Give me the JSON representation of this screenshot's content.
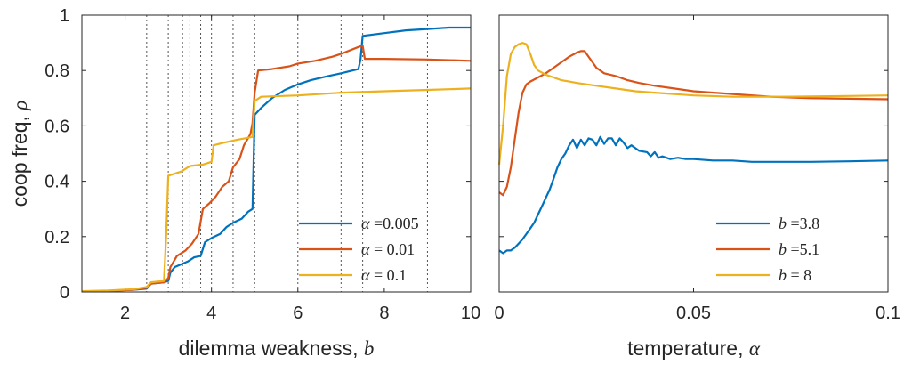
{
  "colors": {
    "blue": "#0072BD",
    "orange": "#D95319",
    "yellow": "#EDB120",
    "axis": "#262626"
  },
  "chart_data": [
    {
      "type": "line",
      "title": "",
      "xlabel": "dilemma weakness,",
      "xlabel_symbol": "b",
      "ylabel": "coop freq,",
      "ylabel_symbol": "ρ",
      "xlim": [
        1,
        10
      ],
      "ylim": [
        0,
        1
      ],
      "xticks": [
        2,
        4,
        6,
        8,
        10
      ],
      "yticks": [
        0,
        0.2,
        0.4,
        0.6,
        0.8,
        1
      ],
      "ytick_labels": [
        "0",
        "0.2",
        "0.4",
        "0.6",
        "0.8",
        "1"
      ],
      "vlines": [
        2.5,
        3,
        3.33,
        3.5,
        3.75,
        4,
        4.5,
        5,
        6,
        7,
        7.5,
        9
      ],
      "legend_position": "bottom-right",
      "series": [
        {
          "name_symbol": "α",
          "name_rest": " =0.005",
          "color": "blue",
          "points": [
            [
              1,
              0.002
            ],
            [
              1.6,
              0.004
            ],
            [
              2.2,
              0.008
            ],
            [
              2.5,
              0.012
            ],
            [
              2.6,
              0.03
            ],
            [
              2.9,
              0.035
            ],
            [
              3.0,
              0.04
            ],
            [
              3.05,
              0.07
            ],
            [
              3.15,
              0.09
            ],
            [
              3.3,
              0.1
            ],
            [
              3.45,
              0.11
            ],
            [
              3.6,
              0.125
            ],
            [
              3.75,
              0.13
            ],
            [
              3.85,
              0.18
            ],
            [
              4.0,
              0.195
            ],
            [
              4.2,
              0.21
            ],
            [
              4.35,
              0.235
            ],
            [
              4.5,
              0.25
            ],
            [
              4.7,
              0.265
            ],
            [
              4.85,
              0.29
            ],
            [
              4.95,
              0.3
            ],
            [
              5.0,
              0.64
            ],
            [
              5.15,
              0.665
            ],
            [
              5.4,
              0.7
            ],
            [
              5.7,
              0.73
            ],
            [
              6.0,
              0.75
            ],
            [
              6.3,
              0.765
            ],
            [
              6.7,
              0.78
            ],
            [
              7.0,
              0.79
            ],
            [
              7.4,
              0.805
            ],
            [
              7.45,
              0.84
            ],
            [
              7.5,
              0.925
            ],
            [
              8.0,
              0.935
            ],
            [
              8.5,
              0.945
            ],
            [
              9.0,
              0.95
            ],
            [
              9.5,
              0.955
            ],
            [
              10,
              0.955
            ]
          ]
        },
        {
          "name_symbol": "α",
          "name_rest": " = 0.01",
          "color": "orange",
          "points": [
            [
              1,
              0.002
            ],
            [
              1.6,
              0.004
            ],
            [
              2.2,
              0.008
            ],
            [
              2.5,
              0.015
            ],
            [
              2.6,
              0.03
            ],
            [
              2.9,
              0.035
            ],
            [
              3.0,
              0.05
            ],
            [
              3.05,
              0.09
            ],
            [
              3.2,
              0.13
            ],
            [
              3.4,
              0.15
            ],
            [
              3.55,
              0.175
            ],
            [
              3.7,
              0.21
            ],
            [
              3.8,
              0.3
            ],
            [
              3.95,
              0.32
            ],
            [
              4.1,
              0.345
            ],
            [
              4.25,
              0.38
            ],
            [
              4.4,
              0.4
            ],
            [
              4.5,
              0.45
            ],
            [
              4.65,
              0.48
            ],
            [
              4.75,
              0.53
            ],
            [
              4.9,
              0.57
            ],
            [
              4.95,
              0.61
            ],
            [
              5.0,
              0.72
            ],
            [
              5.08,
              0.8
            ],
            [
              5.4,
              0.805
            ],
            [
              5.8,
              0.815
            ],
            [
              6.0,
              0.825
            ],
            [
              6.4,
              0.835
            ],
            [
              6.8,
              0.85
            ],
            [
              7.0,
              0.86
            ],
            [
              7.4,
              0.885
            ],
            [
              7.5,
              0.89
            ],
            [
              7.55,
              0.842
            ],
            [
              8.0,
              0.842
            ],
            [
              9.0,
              0.84
            ],
            [
              10,
              0.835
            ]
          ]
        },
        {
          "name_symbol": "α",
          "name_rest": " = 0.1",
          "color": "yellow",
          "points": [
            [
              1,
              0.003
            ],
            [
              1.6,
              0.005
            ],
            [
              2.2,
              0.01
            ],
            [
              2.5,
              0.018
            ],
            [
              2.6,
              0.035
            ],
            [
              2.9,
              0.04
            ],
            [
              2.95,
              0.2
            ],
            [
              3.0,
              0.42
            ],
            [
              3.3,
              0.435
            ],
            [
              3.5,
              0.455
            ],
            [
              3.8,
              0.46
            ],
            [
              4.0,
              0.47
            ],
            [
              4.05,
              0.53
            ],
            [
              4.3,
              0.54
            ],
            [
              4.6,
              0.55
            ],
            [
              4.95,
              0.56
            ],
            [
              5.0,
              0.69
            ],
            [
              5.15,
              0.705
            ],
            [
              6.0,
              0.71
            ],
            [
              7.0,
              0.72
            ],
            [
              8.0,
              0.725
            ],
            [
              9.0,
              0.73
            ],
            [
              10,
              0.735
            ]
          ]
        }
      ]
    },
    {
      "type": "line",
      "title": "",
      "xlabel": "temperature,",
      "xlabel_symbol": "α",
      "xlim": [
        0,
        0.1
      ],
      "ylim": [
        0,
        1
      ],
      "xticks": [
        0,
        0.05,
        0.1
      ],
      "xtick_labels": [
        "0",
        "0.05",
        "0.1"
      ],
      "legend_position": "bottom-right",
      "series": [
        {
          "name_symbol": "b",
          "name_rest": " =3.8",
          "color": "blue",
          "points": [
            [
              0,
              0.15
            ],
            [
              0.001,
              0.14
            ],
            [
              0.002,
              0.15
            ],
            [
              0.003,
              0.15
            ],
            [
              0.004,
              0.16
            ],
            [
              0.005,
              0.175
            ],
            [
              0.006,
              0.19
            ],
            [
              0.007,
              0.21
            ],
            [
              0.008,
              0.23
            ],
            [
              0.009,
              0.25
            ],
            [
              0.01,
              0.28
            ],
            [
              0.011,
              0.31
            ],
            [
              0.012,
              0.34
            ],
            [
              0.013,
              0.37
            ],
            [
              0.014,
              0.41
            ],
            [
              0.015,
              0.45
            ],
            [
              0.016,
              0.48
            ],
            [
              0.017,
              0.5
            ],
            [
              0.018,
              0.53
            ],
            [
              0.019,
              0.55
            ],
            [
              0.02,
              0.52
            ],
            [
              0.021,
              0.55
            ],
            [
              0.022,
              0.53
            ],
            [
              0.023,
              0.555
            ],
            [
              0.024,
              0.55
            ],
            [
              0.025,
              0.53
            ],
            [
              0.026,
              0.56
            ],
            [
              0.027,
              0.535
            ],
            [
              0.028,
              0.555
            ],
            [
              0.029,
              0.555
            ],
            [
              0.03,
              0.53
            ],
            [
              0.031,
              0.555
            ],
            [
              0.032,
              0.54
            ],
            [
              0.033,
              0.52
            ],
            [
              0.034,
              0.53
            ],
            [
              0.036,
              0.51
            ],
            [
              0.038,
              0.505
            ],
            [
              0.039,
              0.49
            ],
            [
              0.04,
              0.505
            ],
            [
              0.041,
              0.485
            ],
            [
              0.042,
              0.49
            ],
            [
              0.044,
              0.48
            ],
            [
              0.046,
              0.485
            ],
            [
              0.048,
              0.48
            ],
            [
              0.05,
              0.48
            ],
            [
              0.055,
              0.475
            ],
            [
              0.06,
              0.475
            ],
            [
              0.065,
              0.47
            ],
            [
              0.07,
              0.47
            ],
            [
              0.075,
              0.47
            ],
            [
              0.08,
              0.47
            ],
            [
              0.09,
              0.472
            ],
            [
              0.1,
              0.475
            ]
          ]
        },
        {
          "name_symbol": "b",
          "name_rest": " =5.1",
          "color": "orange",
          "points": [
            [
              0,
              0.36
            ],
            [
              0.001,
              0.35
            ],
            [
              0.002,
              0.38
            ],
            [
              0.003,
              0.45
            ],
            [
              0.004,
              0.55
            ],
            [
              0.005,
              0.65
            ],
            [
              0.006,
              0.72
            ],
            [
              0.007,
              0.75
            ],
            [
              0.008,
              0.76
            ],
            [
              0.01,
              0.775
            ],
            [
              0.012,
              0.79
            ],
            [
              0.014,
              0.81
            ],
            [
              0.016,
              0.83
            ],
            [
              0.018,
              0.85
            ],
            [
              0.02,
              0.865
            ],
            [
              0.021,
              0.87
            ],
            [
              0.022,
              0.87
            ],
            [
              0.023,
              0.85
            ],
            [
              0.024,
              0.83
            ],
            [
              0.025,
              0.81
            ],
            [
              0.027,
              0.79
            ],
            [
              0.03,
              0.78
            ],
            [
              0.033,
              0.765
            ],
            [
              0.036,
              0.755
            ],
            [
              0.04,
              0.745
            ],
            [
              0.045,
              0.735
            ],
            [
              0.05,
              0.725
            ],
            [
              0.06,
              0.715
            ],
            [
              0.07,
              0.705
            ],
            [
              0.08,
              0.7
            ],
            [
              0.09,
              0.698
            ],
            [
              0.1,
              0.696
            ]
          ]
        },
        {
          "name_symbol": "b",
          "name_rest": " = 8",
          "color": "yellow",
          "points": [
            [
              0,
              0.46
            ],
            [
              0.001,
              0.6
            ],
            [
              0.002,
              0.78
            ],
            [
              0.003,
              0.86
            ],
            [
              0.004,
              0.885
            ],
            [
              0.005,
              0.895
            ],
            [
              0.006,
              0.9
            ],
            [
              0.007,
              0.895
            ],
            [
              0.008,
              0.86
            ],
            [
              0.009,
              0.82
            ],
            [
              0.01,
              0.8
            ],
            [
              0.012,
              0.785
            ],
            [
              0.014,
              0.775
            ],
            [
              0.016,
              0.765
            ],
            [
              0.018,
              0.76
            ],
            [
              0.02,
              0.755
            ],
            [
              0.025,
              0.745
            ],
            [
              0.03,
              0.735
            ],
            [
              0.035,
              0.725
            ],
            [
              0.04,
              0.72
            ],
            [
              0.05,
              0.71
            ],
            [
              0.06,
              0.705
            ],
            [
              0.07,
              0.705
            ],
            [
              0.08,
              0.706
            ],
            [
              0.09,
              0.708
            ],
            [
              0.1,
              0.71
            ]
          ]
        }
      ]
    }
  ]
}
